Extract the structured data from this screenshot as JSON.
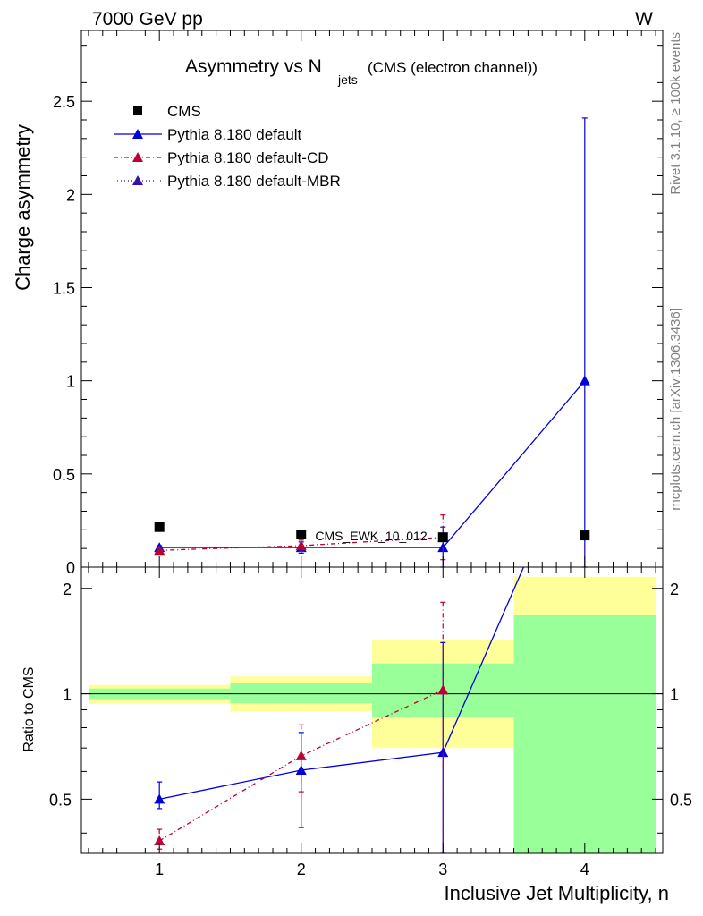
{
  "header": {
    "left": "7000 GeV pp",
    "right": "W"
  },
  "side_labels": {
    "rivet": "Rivet 3.1.10, ≥ 100k events",
    "mcplots": "mcplots.cern.ch [arXiv:1306.3436]"
  },
  "chart_data": {
    "type": "line",
    "title_main": "Asymmetry vs N",
    "title_sub": "jets",
    "title_tail": "(CMS (electron channel))",
    "xlabel": "Inclusive Jet Multiplicity, n",
    "ylabel": "Charge asymmetry",
    "ratio_ylabel": "Ratio to CMS",
    "watermark": "CMS_EWK_10_012",
    "x_ticks": [
      "1",
      "2",
      "3",
      "4"
    ],
    "y_ticks": [
      "0",
      "0.5",
      "1",
      "1.5",
      "2",
      "2.5"
    ],
    "ratio_ticks": [
      "0.5",
      "1",
      "2"
    ],
    "xlim": [
      0.45,
      4.55
    ],
    "ylim": [
      0,
      2.88
    ],
    "ratio_ylim": [
      0.35,
      2.3
    ],
    "ratio_scale": "log",
    "bins": [
      [
        0.5,
        1.5
      ],
      [
        1.5,
        2.5
      ],
      [
        2.5,
        3.5
      ],
      [
        3.5,
        4.5
      ]
    ],
    "legend": [
      {
        "label": "CMS",
        "marker": "square",
        "color": "#000000",
        "line": "none"
      },
      {
        "label": "Pythia 8.180 default",
        "marker": "triangle",
        "color": "#0000dd",
        "line": "solid"
      },
      {
        "label": "Pythia 8.180 default-CD",
        "marker": "triangle",
        "color": "#bb0033",
        "line": "dashdot"
      },
      {
        "label": "Pythia 8.180 default-MBR",
        "marker": "triangle",
        "color": "#3311aa",
        "line": "dotted"
      }
    ],
    "data": {
      "x": [
        1,
        2,
        3,
        4
      ],
      "y": [
        0.215,
        0.175,
        0.16,
        0.17
      ]
    },
    "ratio_bands": {
      "yellow_low": [
        0.94,
        0.89,
        0.7,
        0.3
      ],
      "yellow_high": [
        1.06,
        1.12,
        1.42,
        2.16
      ],
      "green_low": [
        0.965,
        0.94,
        0.86,
        0.3
      ],
      "green_high": [
        1.035,
        1.07,
        1.22,
        1.68
      ]
    },
    "series": [
      {
        "name": "Pythia 8.180 default",
        "color": "#0000dd",
        "x": [
          1,
          2,
          3,
          4
        ],
        "y": [
          0.105,
          0.105,
          0.105,
          1.0
        ],
        "err_low": [
          0.01,
          0.03,
          0.11,
          1.0
        ],
        "err_high": [
          0.01,
          0.03,
          0.11,
          1.41
        ],
        "ratio": [
          0.5,
          0.605,
          0.68,
          5.8
        ],
        "ratio_err_low": [
          0.03,
          0.19,
          0.4,
          0
        ],
        "ratio_err_high": [
          0.06,
          0.17,
          0.72,
          0
        ]
      },
      {
        "name": "Pythia 8.180 default-CD",
        "color": "#bb0033",
        "x": [
          1,
          2,
          3
        ],
        "y": [
          0.09,
          0.115,
          0.16
        ],
        "err_low": [
          0.01,
          0.03,
          0.12
        ],
        "err_high": [
          0.01,
          0.03,
          0.12
        ],
        "ratio": [
          0.38,
          0.665,
          1.025
        ],
        "ratio_err_low": [
          0.02,
          0.14,
          0.7
        ],
        "ratio_err_high": [
          0.03,
          0.15,
          0.8
        ]
      }
    ]
  }
}
